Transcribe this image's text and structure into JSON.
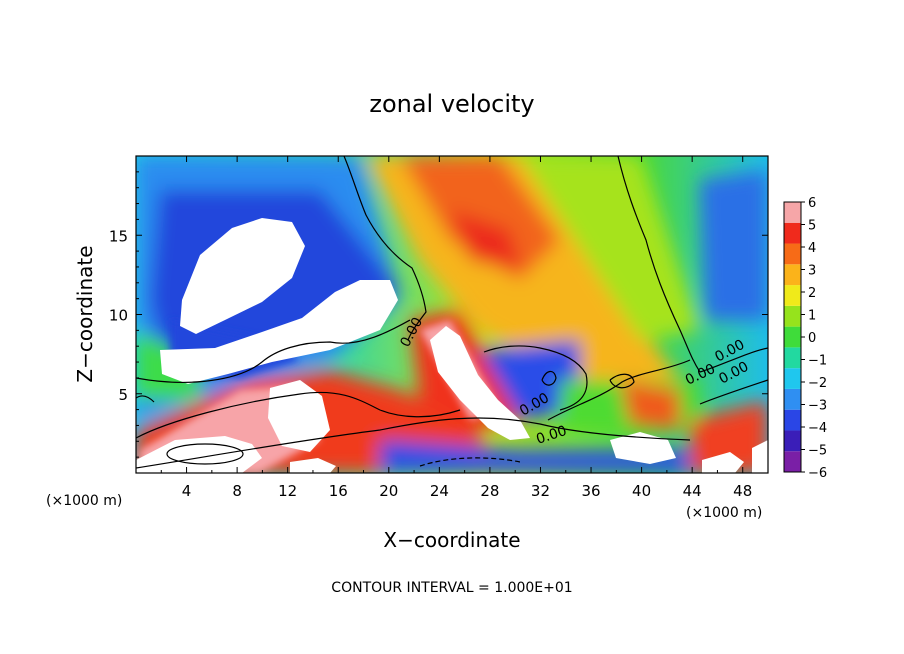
{
  "chart_data": {
    "type": "heatmap",
    "title": "zonal velocity",
    "xlabel": "X−coordinate",
    "ylabel": "Z−coordinate",
    "x_unit_label": "(×1000 m)",
    "z_unit_label": "(×1000 m)",
    "xlim": [
      0,
      50
    ],
    "ylim": [
      0,
      20
    ],
    "x_ticks": [
      4,
      8,
      12,
      16,
      20,
      24,
      28,
      32,
      36,
      40,
      44,
      48
    ],
    "y_ticks": [
      5,
      10,
      15
    ],
    "colorbar": {
      "range": [
        -6,
        6
      ],
      "ticks": [
        6,
        5,
        4,
        3,
        2,
        1,
        0,
        -1,
        -2,
        -3,
        -4,
        -5,
        -6
      ],
      "colors": [
        "#7a1fa6",
        "#3a1eb8",
        "#2a46e6",
        "#2f8ff2",
        "#1fc7ee",
        "#22d9a0",
        "#3fdc3a",
        "#96e31c",
        "#f0ea1a",
        "#fbb31a",
        "#f76b17",
        "#f02a1c",
        "#f6a6a8"
      ]
    },
    "contour_labels": [
      "0.00",
      "0.00",
      "0.00",
      "0.00",
      "0.00",
      "0.00"
    ],
    "footer": "CONTOUR INTERVAL = 1.000E+01"
  }
}
